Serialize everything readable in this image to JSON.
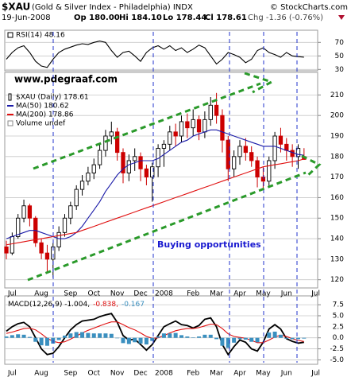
{
  "header": {
    "symbol": "$XAU",
    "name": "(Gold & Silver Index - Philadelphia) INDX",
    "source": "© StockCharts.com",
    "date": "19-Jun-2008",
    "open": "Op 180.00",
    "high": "Hi 184.10",
    "low": "Lo 178.44",
    "close": "Cl 178.61",
    "change": "Chg -1.36 (-0.76%)"
  },
  "chart_data": [
    {
      "type": "line",
      "ylim": [
        28,
        88
      ],
      "yticks": [
        30,
        50,
        70
      ],
      "grid": true,
      "series": [
        {
          "name": "RSI(14) 48.16",
          "color": "#000000",
          "values": [
            45,
            55,
            62,
            65,
            55,
            42,
            35,
            33,
            45,
            55,
            60,
            63,
            66,
            68,
            67,
            70,
            72,
            70,
            58,
            48,
            55,
            57,
            50,
            42,
            55,
            62,
            65,
            60,
            65,
            58,
            62,
            55,
            60,
            66,
            62,
            50,
            38,
            45,
            55,
            52,
            48,
            40,
            45,
            58,
            62,
            55,
            52,
            48,
            55,
            50,
            49,
            48.16
          ]
        }
      ]
    },
    {
      "type": "candlestick",
      "ylim": [
        116,
        221
      ],
      "yticks": [
        120,
        130,
        140,
        150,
        160,
        170,
        180,
        190,
        200,
        210
      ],
      "grid": true,
      "categories": [
        null,
        "Jul",
        null,
        null,
        null,
        null,
        "Aug",
        null,
        null,
        null,
        null,
        "Sep",
        null,
        null,
        null,
        "Oct",
        null,
        null,
        null,
        "Nov",
        null,
        null,
        null,
        "Dec",
        null,
        null,
        null,
        "2008",
        null,
        null,
        null,
        null,
        "Feb",
        null,
        null,
        null,
        "Mar",
        null,
        null,
        null,
        "Apr",
        null,
        null,
        null,
        "May",
        null,
        null,
        null,
        "Jun",
        null,
        null,
        null,
        null,
        "Jul"
      ],
      "series": [
        {
          "name": "$XAU (Daily) 178.61",
          "type": "candlestick",
          "up_color": "#000000",
          "down_color": "#cc0000",
          "open": [
            136,
            133,
            141,
            150,
            156,
            150,
            138,
            133,
            130,
            136,
            143,
            150,
            156,
            164,
            168,
            172,
            176,
            183,
            190,
            192,
            182,
            172,
            178,
            180,
            174,
            170,
            175,
            184,
            186,
            192,
            190,
            197,
            194,
            198,
            192,
            198,
            205,
            200,
            188,
            174,
            180,
            185,
            182,
            178,
            170,
            168,
            178,
            190,
            186,
            183,
            180,
            180,
            null,
            null
          ],
          "high": [
            139,
            143,
            152,
            159,
            157,
            151,
            140,
            137,
            138,
            146,
            152,
            158,
            166,
            171,
            175,
            179,
            186,
            193,
            197,
            194,
            184,
            181,
            184,
            182,
            176,
            177,
            186,
            188,
            195,
            196,
            200,
            201,
            203,
            200,
            202,
            209,
            211,
            203,
            190,
            183,
            188,
            189,
            185,
            180,
            175,
            180,
            192,
            194,
            189,
            186,
            186,
            184.1,
            null,
            null
          ],
          "low": [
            130,
            132,
            140,
            148,
            146,
            136,
            130,
            124,
            121,
            134,
            141,
            147,
            154,
            161,
            166,
            169,
            174,
            180,
            186,
            178,
            167,
            168,
            173,
            168,
            166,
            158,
            170,
            175,
            183,
            185,
            187,
            189,
            190,
            188,
            189,
            195,
            196,
            182,
            168,
            170,
            176,
            178,
            175,
            165,
            164,
            165,
            174,
            182,
            178,
            175,
            174,
            178.44,
            null,
            null
          ],
          "close": [
            133,
            141,
            150,
            156,
            150,
            138,
            133,
            130,
            136,
            143,
            150,
            156,
            164,
            168,
            172,
            176,
            183,
            190,
            192,
            182,
            172,
            178,
            180,
            174,
            170,
            175,
            184,
            186,
            192,
            190,
            197,
            194,
            198,
            192,
            198,
            205,
            200,
            188,
            174,
            180,
            185,
            182,
            178,
            170,
            168,
            178,
            190,
            186,
            183,
            180,
            184,
            178.61,
            null,
            null
          ]
        },
        {
          "name": "MA(50) 180.62",
          "color": "#1a1aa8",
          "values": [
            140,
            141,
            142,
            143,
            144,
            144,
            143,
            142,
            141,
            140,
            140,
            141,
            143,
            146,
            150,
            154,
            158,
            163,
            167,
            171,
            174,
            176,
            177,
            178,
            178,
            178,
            179,
            181,
            183,
            185,
            187,
            188,
            190,
            191,
            192,
            193,
            193,
            192,
            191,
            190,
            189,
            188,
            187,
            186,
            185,
            185,
            185,
            184,
            183,
            182,
            181,
            180.62,
            null,
            null
          ]
        },
        {
          "name": "MA(200) 178.86",
          "color": "#e01010",
          "values": [
            137,
            137.5,
            138,
            138.5,
            139,
            139.5,
            140,
            140.5,
            141,
            141.5,
            142,
            142.5,
            143,
            144,
            145,
            146,
            147,
            148,
            149,
            150,
            151,
            152,
            153,
            154,
            155,
            156,
            157,
            158,
            159,
            160,
            161,
            162,
            163,
            164,
            165,
            166,
            167,
            168,
            169,
            170,
            171,
            172,
            173,
            174,
            175,
            175.5,
            176,
            176.5,
            177,
            177.5,
            178,
            178.86,
            null,
            null
          ]
        }
      ],
      "legend_notes": [
        "Volume undef"
      ],
      "annotations": [
        "www.pdegraaf.com",
        "Buying opportunities"
      ]
    },
    {
      "type": "line",
      "ylim": [
        -6,
        9.5
      ],
      "grid": true,
      "yticks": [
        7.5,
        {
          "value": 5,
          "label": "5.0"
        },
        2.5,
        {
          "value": 0,
          "label": "0.0"
        },
        -2.5,
        {
          "value": -5,
          "label": "-5.0"
        }
      ],
      "categories": [
        null,
        "Jul",
        null,
        null,
        null,
        null,
        "Aug",
        null,
        null,
        null,
        null,
        "Sep",
        null,
        null,
        null,
        "Oct",
        null,
        null,
        null,
        "Nov",
        null,
        null,
        null,
        "Dec",
        null,
        null,
        null,
        "2008",
        null,
        null,
        null,
        null,
        "Feb",
        null,
        null,
        null,
        "Mar",
        null,
        null,
        null,
        "Apr",
        null,
        null,
        null,
        "May",
        null,
        null,
        null,
        "Jun",
        null,
        null,
        null,
        null,
        "Jul"
      ],
      "series": [
        {
          "name": "MACD(12,26,9) -1.004,",
          "color": "#000000",
          "values": [
            1.5,
            2.5,
            3.2,
            3.5,
            2.5,
            0,
            -2.5,
            -3.8,
            -3.5,
            -2,
            0,
            1.8,
            3,
            3.8,
            4,
            4.2,
            4.8,
            5.2,
            5.5,
            3.5,
            0.5,
            -0.5,
            -0.3,
            -1.5,
            -2.8,
            -1.5,
            0.5,
            2.5,
            3.2,
            3.8,
            3,
            2.8,
            2.2,
            2.8,
            4.2,
            4.5,
            2.5,
            -1.5,
            -3.8,
            -2,
            -0.5,
            -1,
            -2.5,
            -3,
            -1,
            2,
            3,
            2,
            -0.2,
            -0.8,
            -1.2,
            -1.004,
            null,
            null
          ]
        },
        {
          "name": "-0.838,",
          "color": "#e01010",
          "values": [
            1.0,
            1.3,
            1.7,
            2.1,
            2.2,
            1.8,
            0.9,
            -0.1,
            -0.8,
            -1.1,
            -0.9,
            -0.3,
            0.4,
            1.1,
            1.7,
            2.2,
            2.7,
            3.2,
            3.6,
            3.6,
            3.0,
            2.3,
            1.8,
            1.1,
            0.3,
            -0.1,
            0,
            0.5,
            1.1,
            1.6,
            1.9,
            2.1,
            2.1,
            2.3,
            2.7,
            3.1,
            3.0,
            2.1,
            0.9,
            0.3,
            0.1,
            -0.1,
            -0.6,
            -1.1,
            -1.1,
            -0.5,
            0.2,
            0.6,
            0.3,
            -0.2,
            -0.6,
            -0.838,
            null,
            null
          ]
        },
        {
          "name": "-0.167",
          "type": "bar",
          "color": "#3a8fbf",
          "values": [
            0.3,
            0.6,
            0.8,
            0.7,
            0.2,
            -0.9,
            -1.7,
            -1.8,
            -1.3,
            -0.5,
            0.5,
            1.0,
            1.3,
            1.3,
            1.1,
            1.0,
            1.0,
            1.0,
            0.9,
            -0.1,
            -1.2,
            -1.4,
            -1.0,
            -1.3,
            -1.5,
            -0.7,
            0.3,
            1.0,
            1.0,
            1.1,
            0.6,
            0.3,
            0.1,
            0.3,
            0.7,
            0.7,
            -0.3,
            -1.8,
            -2.3,
            -1.1,
            -0.3,
            -0.4,
            -0.9,
            -1.0,
            0,
            1.2,
            1.4,
            0.7,
            -0.2,
            -0.3,
            -0.3,
            -0.167,
            null,
            null
          ]
        }
      ]
    }
  ]
}
